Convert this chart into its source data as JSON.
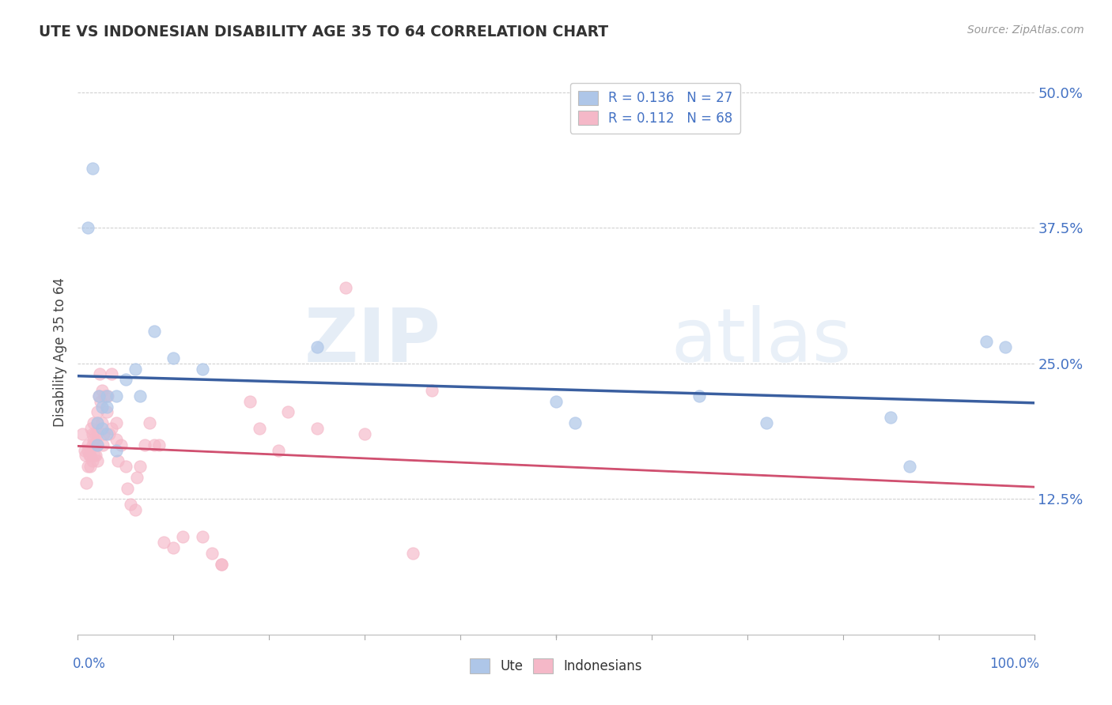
{
  "title": "UTE VS INDONESIAN DISABILITY AGE 35 TO 64 CORRELATION CHART",
  "source": "Source: ZipAtlas.com",
  "ylabel": "Disability Age 35 to 64",
  "ute_R": 0.136,
  "ute_N": 27,
  "indonesian_R": 0.112,
  "indonesian_N": 68,
  "ute_color": "#aec6e8",
  "indonesian_color": "#f5b8c8",
  "ute_line_color": "#3a5fa0",
  "indonesian_line_color": "#d05070",
  "ute_scatter_x": [
    0.01,
    0.015,
    0.02,
    0.02,
    0.022,
    0.025,
    0.025,
    0.03,
    0.03,
    0.03,
    0.04,
    0.04,
    0.05,
    0.06,
    0.065,
    0.08,
    0.1,
    0.13,
    0.25,
    0.5,
    0.52,
    0.65,
    0.72,
    0.85,
    0.87,
    0.95,
    0.97
  ],
  "ute_scatter_y": [
    0.375,
    0.43,
    0.195,
    0.175,
    0.22,
    0.21,
    0.19,
    0.22,
    0.21,
    0.185,
    0.22,
    0.17,
    0.235,
    0.245,
    0.22,
    0.28,
    0.255,
    0.245,
    0.265,
    0.215,
    0.195,
    0.22,
    0.195,
    0.2,
    0.155,
    0.27,
    0.265
  ],
  "indonesian_scatter_x": [
    0.005,
    0.007,
    0.008,
    0.009,
    0.01,
    0.01,
    0.01,
    0.012,
    0.013,
    0.013,
    0.014,
    0.015,
    0.015,
    0.015,
    0.016,
    0.016,
    0.017,
    0.018,
    0.018,
    0.019,
    0.02,
    0.02,
    0.02,
    0.02,
    0.02,
    0.022,
    0.023,
    0.024,
    0.025,
    0.025,
    0.026,
    0.027,
    0.028,
    0.03,
    0.031,
    0.033,
    0.035,
    0.035,
    0.04,
    0.04,
    0.042,
    0.045,
    0.05,
    0.052,
    0.055,
    0.06,
    0.062,
    0.065,
    0.07,
    0.075,
    0.08,
    0.085,
    0.09,
    0.1,
    0.11,
    0.13,
    0.14,
    0.15,
    0.15,
    0.18,
    0.19,
    0.21,
    0.22,
    0.25,
    0.28,
    0.3,
    0.35,
    0.37
  ],
  "indonesian_scatter_y": [
    0.185,
    0.17,
    0.165,
    0.14,
    0.155,
    0.17,
    0.175,
    0.165,
    0.165,
    0.155,
    0.19,
    0.16,
    0.175,
    0.185,
    0.18,
    0.195,
    0.165,
    0.175,
    0.185,
    0.165,
    0.16,
    0.175,
    0.185,
    0.195,
    0.205,
    0.22,
    0.24,
    0.215,
    0.225,
    0.195,
    0.175,
    0.185,
    0.22,
    0.205,
    0.22,
    0.185,
    0.24,
    0.19,
    0.18,
    0.195,
    0.16,
    0.175,
    0.155,
    0.135,
    0.12,
    0.115,
    0.145,
    0.155,
    0.175,
    0.195,
    0.175,
    0.175,
    0.085,
    0.08,
    0.09,
    0.09,
    0.075,
    0.065,
    0.065,
    0.215,
    0.19,
    0.17,
    0.205,
    0.19,
    0.32,
    0.185,
    0.075,
    0.225
  ],
  "xlim": [
    0,
    1.0
  ],
  "ylim": [
    0,
    0.52
  ],
  "ytick_vals": [
    0.0,
    0.125,
    0.25,
    0.375,
    0.5
  ],
  "ytick_labels": [
    "",
    "12.5%",
    "25.0%",
    "37.5%",
    "50.0%"
  ]
}
